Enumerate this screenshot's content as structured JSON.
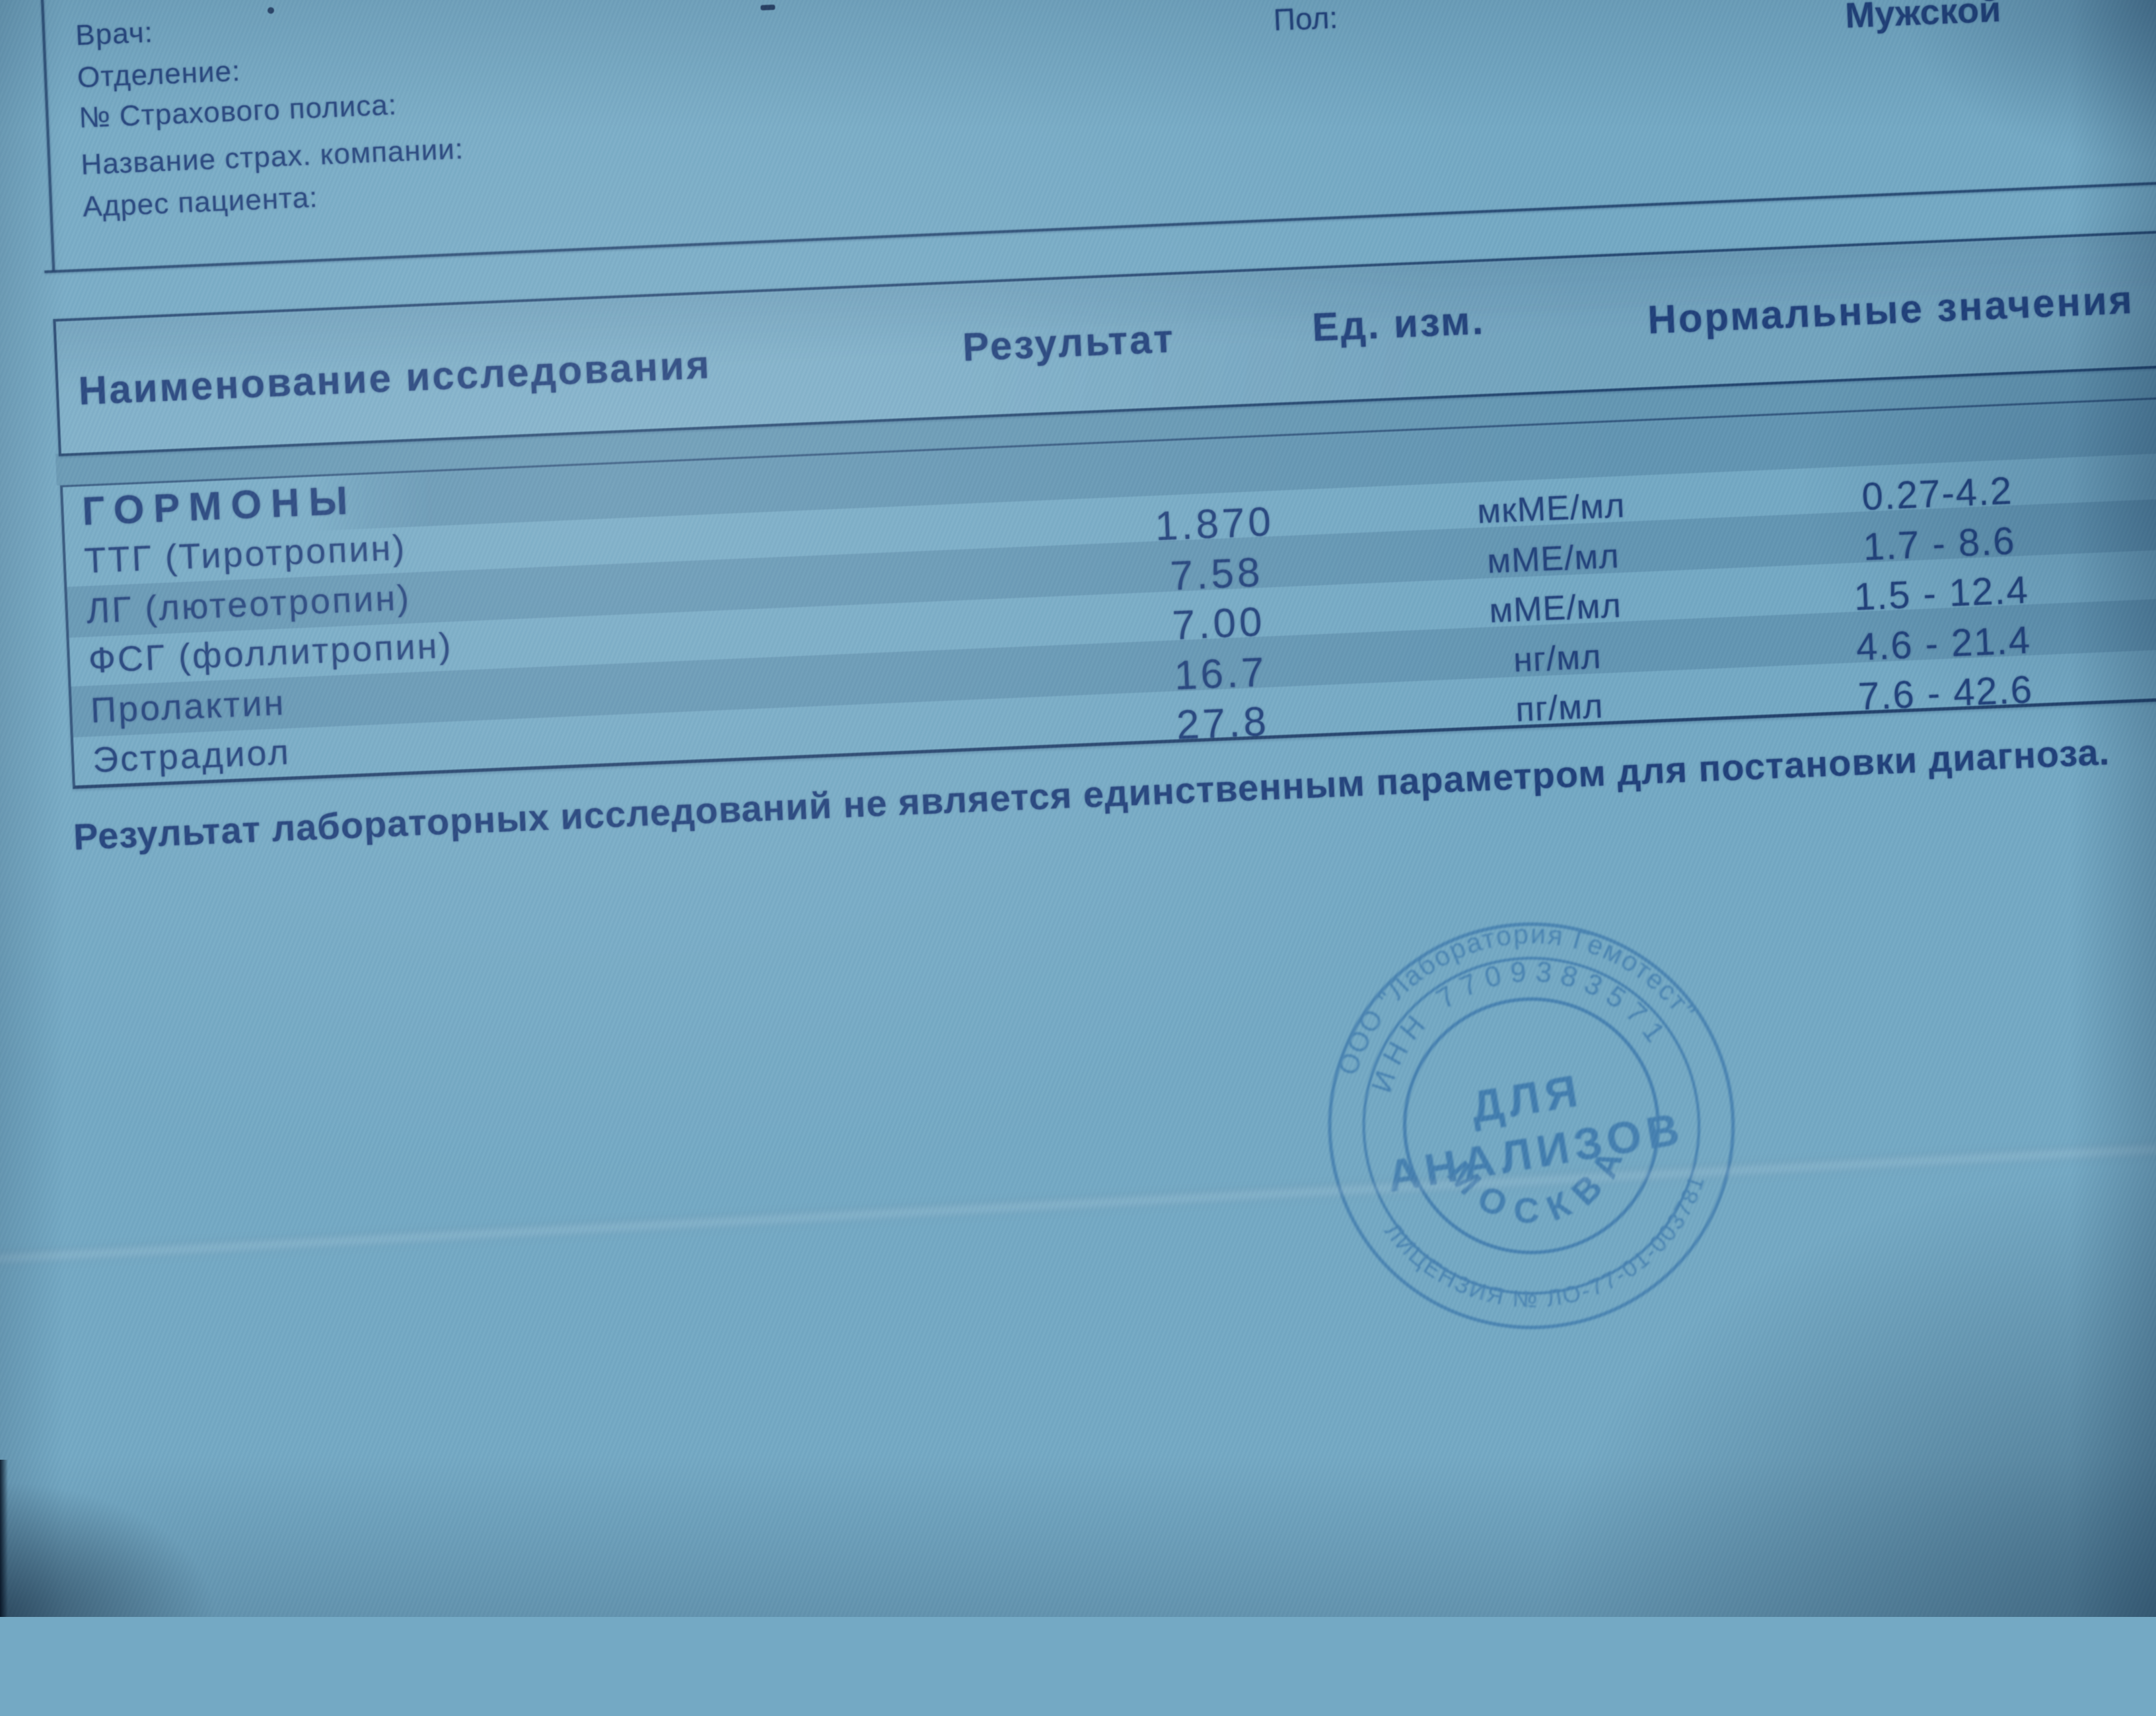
{
  "patient_info": {
    "labels": [
      "Врач:",
      "Отделение:",
      "№ Страхового полиса:",
      "Название страх. компании:",
      "Адрес пациента:"
    ],
    "gender_label": "Пол:",
    "gender_value": "Мужской"
  },
  "table": {
    "headers": {
      "name": "Наименование исследования",
      "result": "Результат",
      "unit": "Ед. изм.",
      "normal": "Нормальные значения"
    },
    "section": "ГОРМОНЫ",
    "rows": [
      {
        "name": "ТТГ (Тиротропин)",
        "result": "1.870",
        "unit": "мкМЕ/мл",
        "normal": "0.27-4.2"
      },
      {
        "name": "ЛГ (лютеотропин)",
        "result": "7.58",
        "unit": "мМЕ/мл",
        "normal": "1.7 - 8.6"
      },
      {
        "name": "ФСГ (фоллитропин)",
        "result": "7.00",
        "unit": "мМЕ/мл",
        "normal": "1.5 - 12.4"
      },
      {
        "name": "Пролактин",
        "result": "16.7",
        "unit": "нг/мл",
        "normal": "4.6 - 21.4"
      },
      {
        "name": "Эстрадиол",
        "result": "27.8",
        "unit": "пг/мл",
        "normal": "7.6 - 42.6"
      }
    ]
  },
  "disclaimer": "Результат лабораторных исследований не является единственным параметром для постановки диагноза.",
  "stamp": {
    "org": "ООО \"Лаборатория Гемотест\"",
    "inn": "ИНН 7709383571",
    "center_line1": "ДЛЯ",
    "center_line2": "АНАЛИЗОВ",
    "city": "МОСКВА",
    "license": "ЛИЦЕНЗИЯ № ЛО-77-01-003781"
  },
  "colors": {
    "paper": "#74a9c4",
    "ink": "#20407a",
    "stamp_ink": "#2d6ba6"
  }
}
